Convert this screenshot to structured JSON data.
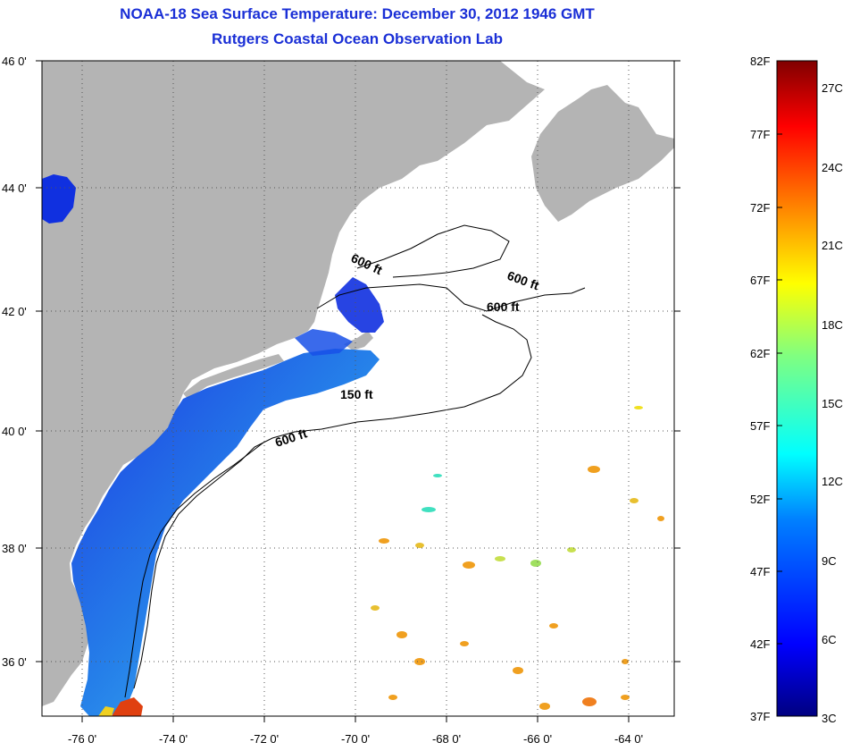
{
  "title": {
    "line1": "NOAA-18 Sea Surface Temperature:  December 30, 2012 1946 GMT",
    "line2": "Rutgers Coastal Ocean Observation Lab"
  },
  "map": {
    "lon_range": [
      -77,
      -63
    ],
    "lat_range": [
      35,
      46
    ],
    "lon_ticks": [
      {
        "value": -76,
        "label": "-76 0'"
      },
      {
        "value": -74,
        "label": "-74 0'"
      },
      {
        "value": -72,
        "label": "-72 0'"
      },
      {
        "value": -70,
        "label": "-70 0'"
      },
      {
        "value": -68,
        "label": "-68 0'"
      },
      {
        "value": -66,
        "label": "-66 0'"
      },
      {
        "value": -64,
        "label": "-64 0'"
      }
    ],
    "lat_ticks": [
      {
        "value": 46,
        "label": "46 0'"
      },
      {
        "value": 44,
        "label": "44 0'"
      },
      {
        "value": 42,
        "label": "42 0'"
      },
      {
        "value": 40,
        "label": "40 0'"
      },
      {
        "value": 38,
        "label": "38 0'"
      },
      {
        "value": 36,
        "label": "36 0'"
      }
    ],
    "grid": "dotted",
    "colors": {
      "land": "#b4b4b4",
      "ocean_no_data": "#ffffff",
      "grid": "#555555",
      "contour": "#000000"
    },
    "contour_labels": [
      "600 ft",
      "600 ft",
      "600 ft",
      "150 ft",
      "600 ft"
    ]
  },
  "colorbar": {
    "fahrenheit_labels": [
      "82F",
      "77F",
      "72F",
      "67F",
      "62F",
      "57F",
      "52F",
      "47F",
      "42F",
      "37F"
    ],
    "celsius_labels": [
      "27C",
      "24C",
      "21C",
      "18C",
      "15C",
      "12C",
      "9C",
      "6C",
      "3C"
    ],
    "colormap": "jet",
    "colors": [
      "#000080",
      "#0000ff",
      "#0080ff",
      "#00ffff",
      "#80ff80",
      "#ffff00",
      "#ff8000",
      "#ff0000",
      "#800000"
    ]
  }
}
